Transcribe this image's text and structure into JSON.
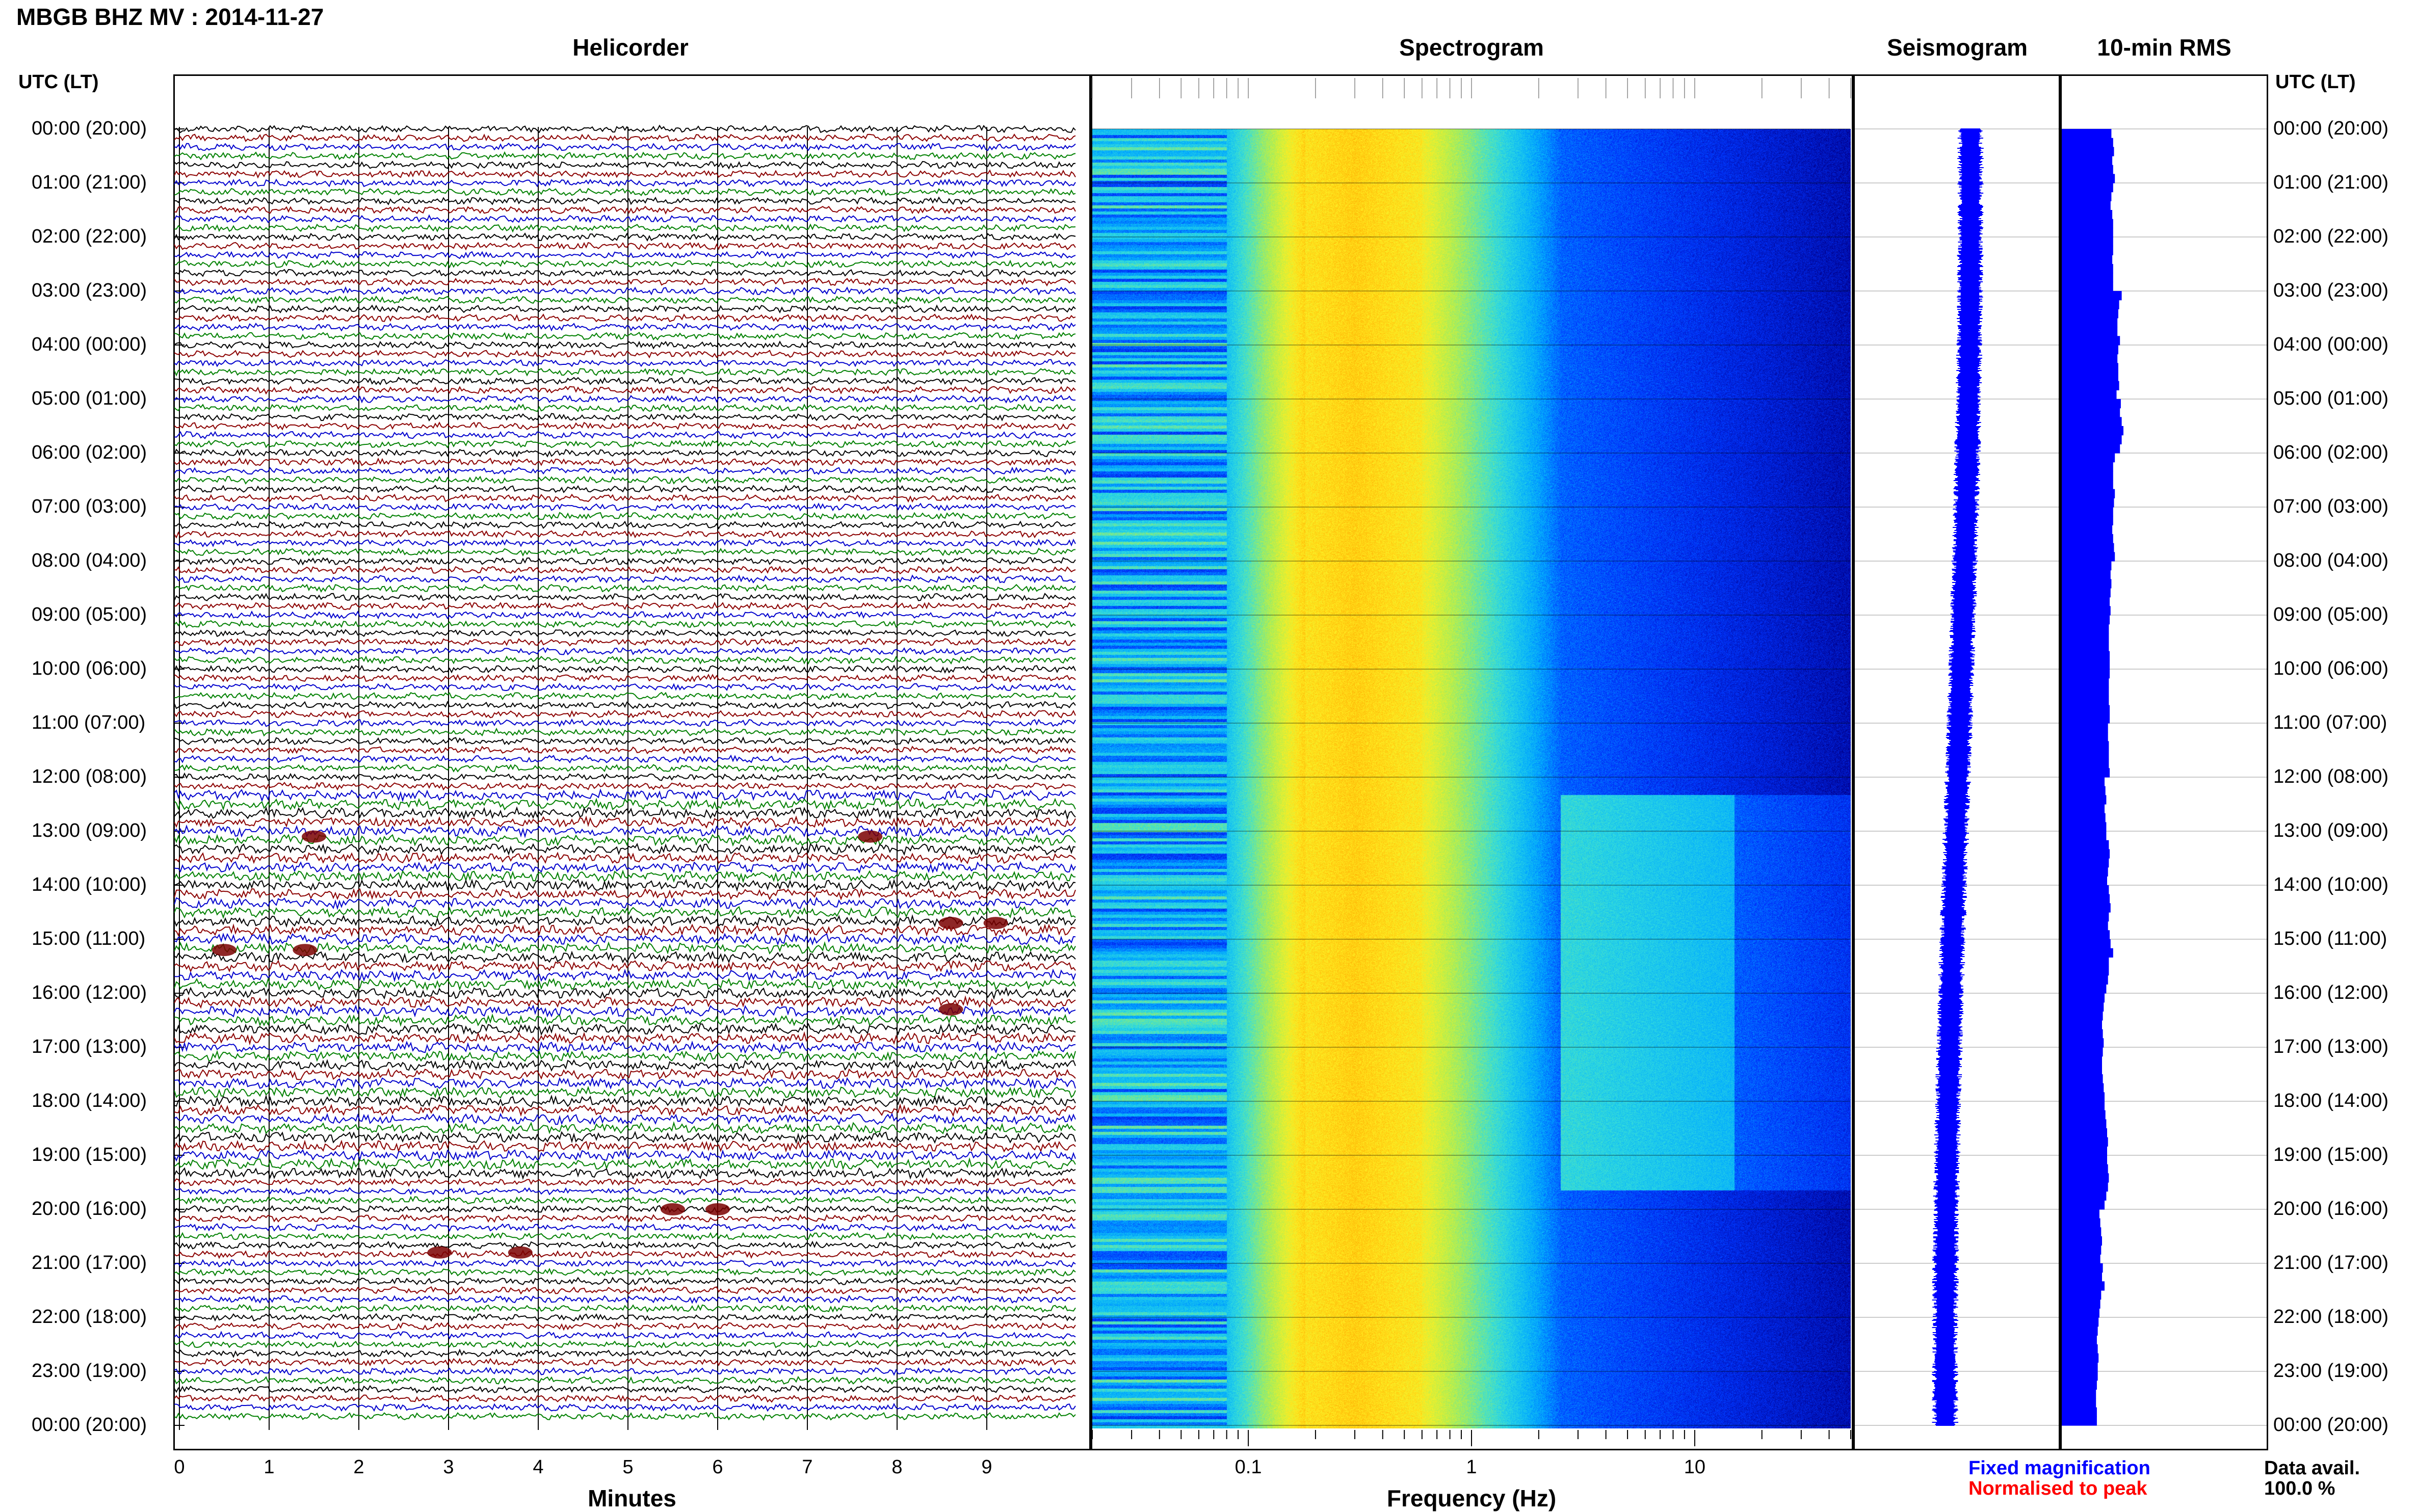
{
  "header": {
    "station_title": "MBGB BHZ MV : 2014-11-27",
    "utc_label": "UTC (LT)"
  },
  "panels": {
    "helicorder": "Helicorder",
    "spectrogram": "Spectrogram",
    "seismogram": "Seismogram",
    "rms": "10-min RMS"
  },
  "time_labels": [
    "00:00 (20:00)",
    "01:00 (21:00)",
    "02:00 (22:00)",
    "03:00 (23:00)",
    "04:00 (00:00)",
    "05:00 (01:00)",
    "06:00 (02:00)",
    "07:00 (03:00)",
    "08:00 (04:00)",
    "09:00 (05:00)",
    "10:00 (06:00)",
    "11:00 (07:00)",
    "12:00 (08:00)",
    "13:00 (09:00)",
    "14:00 (10:00)",
    "15:00 (11:00)",
    "16:00 (12:00)",
    "17:00 (13:00)",
    "18:00 (14:00)",
    "19:00 (15:00)",
    "20:00 (16:00)",
    "21:00 (17:00)",
    "22:00 (18:00)",
    "23:00 (19:00)",
    "00:00 (20:00)"
  ],
  "helicorder_axis": {
    "xlabel": "Minutes",
    "ticks": [
      "0",
      "1",
      "2",
      "3",
      "4",
      "5",
      "6",
      "7",
      "8",
      "9"
    ],
    "trace_colors": [
      "#000000",
      "#8b0000",
      "#0000cd",
      "#008000"
    ]
  },
  "spectrogram_axis": {
    "xlabel": "Frequency (Hz)",
    "ticks": [
      "0.1",
      "1",
      "10"
    ],
    "scale": "log",
    "xlim": [
      0.02,
      50
    ],
    "colormap": [
      "#00008b",
      "#0033ff",
      "#00aaff",
      "#33dddd",
      "#aaee55",
      "#ffee22",
      "#ffaa00",
      "#ff3300"
    ]
  },
  "legend": {
    "fixed": "Fixed magnification",
    "normalised": "Normalised to peak",
    "avail_label": "Data avail.",
    "avail_value": "100.0 %",
    "fixed_color": "#0000ff",
    "normalised_color": "#ff0000"
  },
  "chart_data": {
    "type": "heatmap",
    "title": "MBGB BHZ MV : 2014-11-27",
    "xlabel": "Frequency (Hz)",
    "ylabel": "UTC (LT)",
    "rows_utc_hours": [
      0,
      24
    ],
    "spectrogram_peak_band_hz": [
      0.2,
      0.5
    ],
    "rms_10min": {
      "unit": "relative",
      "values": [
        0.58,
        0.6,
        0.61,
        0.59,
        0.6,
        0.62,
        0.6,
        0.58,
        0.57,
        0.59,
        0.6,
        0.6,
        0.6,
        0.6,
        0.59,
        0.6,
        0.6,
        0.6,
        0.7,
        0.67,
        0.66,
        0.65,
        0.65,
        0.68,
        0.66,
        0.65,
        0.66,
        0.66,
        0.67,
        0.64,
        0.69,
        0.68,
        0.7,
        0.72,
        0.7,
        0.68,
        0.62,
        0.6,
        0.6,
        0.6,
        0.62,
        0.61,
        0.6,
        0.6,
        0.59,
        0.6,
        0.61,
        0.62,
        0.58,
        0.57,
        0.58,
        0.57,
        0.56,
        0.57,
        0.56,
        0.55,
        0.55,
        0.55,
        0.56,
        0.56,
        0.56,
        0.55,
        0.55,
        0.55,
        0.56,
        0.56,
        0.54,
        0.54,
        0.55,
        0.55,
        0.55,
        0.56,
        0.5,
        0.51,
        0.52,
        0.5,
        0.51,
        0.52,
        0.52,
        0.55,
        0.56,
        0.55,
        0.54,
        0.53,
        0.55,
        0.56,
        0.57,
        0.55,
        0.54,
        0.56,
        0.57,
        0.6,
        0.55,
        0.55,
        0.54,
        0.52,
        0.5,
        0.49,
        0.48,
        0.47,
        0.48,
        0.49,
        0.48,
        0.47,
        0.47,
        0.48,
        0.49,
        0.5,
        0.5,
        0.51,
        0.52,
        0.53,
        0.54,
        0.53,
        0.53,
        0.54,
        0.55,
        0.54,
        0.52,
        0.5,
        0.44,
        0.45,
        0.46,
        0.47,
        0.46,
        0.45,
        0.48,
        0.47,
        0.5,
        0.46,
        0.45,
        0.44,
        0.43,
        0.42,
        0.41,
        0.42,
        0.43,
        0.42,
        0.42,
        0.41,
        0.4,
        0.4,
        0.41,
        0.41
      ]
    }
  }
}
